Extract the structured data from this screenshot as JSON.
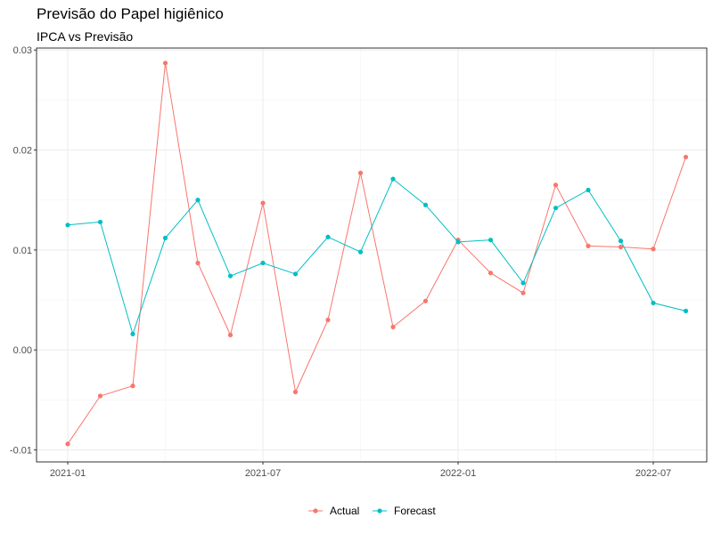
{
  "chart_data": {
    "type": "line",
    "title": "Previsão do Papel higiênico",
    "subtitle": "IPCA vs Previsão",
    "xlabel": "",
    "ylabel": "",
    "x": [
      "2021-01",
      "2021-02",
      "2021-03",
      "2021-04",
      "2021-05",
      "2021-06",
      "2021-07",
      "2021-08",
      "2021-09",
      "2021-10",
      "2021-11",
      "2021-12",
      "2022-01",
      "2022-02",
      "2022-03",
      "2022-04",
      "2022-05",
      "2022-06",
      "2022-07",
      "2022-08"
    ],
    "x_ticks": [
      "2021-01",
      "2021-07",
      "2022-01",
      "2022-07"
    ],
    "y_ticks": [
      "-0.01",
      "0.00",
      "0.01",
      "0.02",
      "0.03"
    ],
    "ylim": [
      -0.0112,
      0.0302
    ],
    "grid": true,
    "legend_position": "bottom",
    "series": [
      {
        "name": "Actual",
        "color": "#F8766D",
        "values": [
          -0.0094,
          -0.0046,
          -0.0036,
          0.0287,
          0.0087,
          0.0015,
          0.0147,
          -0.0042,
          0.003,
          0.0177,
          0.0023,
          0.0049,
          0.011,
          0.0077,
          0.0057,
          0.0165,
          0.0104,
          0.0103,
          0.0101,
          0.0193
        ]
      },
      {
        "name": "Forecast",
        "color": "#00BFC4",
        "values": [
          0.0125,
          0.0128,
          0.0016,
          0.0112,
          0.015,
          0.0074,
          0.0087,
          0.0076,
          0.0113,
          0.0098,
          0.0171,
          0.0145,
          0.0108,
          0.011,
          0.0067,
          0.0142,
          0.016,
          0.0109,
          0.0047,
          0.0039
        ]
      }
    ]
  }
}
